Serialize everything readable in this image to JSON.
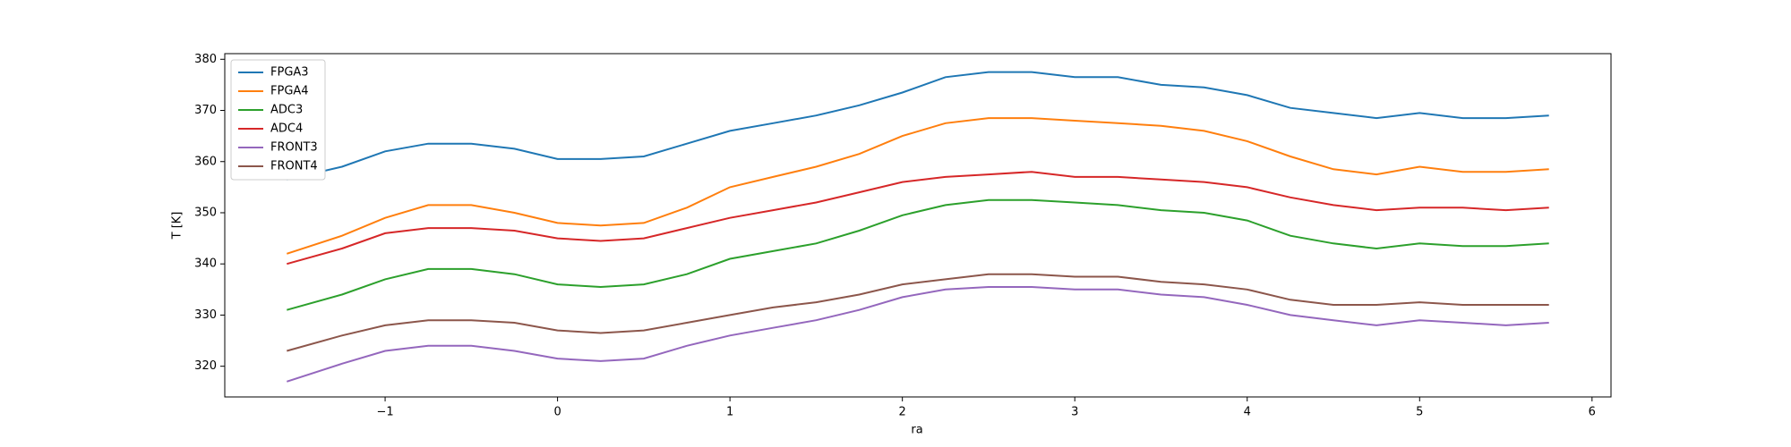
{
  "chart_data": {
    "type": "line",
    "xlabel": "ra",
    "ylabel": "T [K]",
    "x": [
      -1.57,
      -1.25,
      -1.0,
      -0.75,
      -0.5,
      -0.25,
      0,
      0.25,
      0.5,
      0.75,
      1.0,
      1.25,
      1.5,
      1.75,
      2.0,
      2.25,
      2.5,
      2.75,
      3.0,
      3.25,
      3.5,
      3.75,
      4.0,
      4.25,
      4.5,
      4.75,
      5.0,
      5.25,
      5.5,
      5.75
    ],
    "series": [
      {
        "name": "FPGA3",
        "color": "#1f77b4",
        "values": [
          356.5,
          359,
          362,
          363.5,
          363.5,
          362.5,
          360.5,
          360.5,
          361,
          363.5,
          366,
          367.5,
          369,
          371,
          373.5,
          376.5,
          377.5,
          377.5,
          376.5,
          376.5,
          375,
          374.5,
          373,
          370.5,
          369.5,
          368.5,
          369.5,
          368.5,
          368.5,
          369
        ]
      },
      {
        "name": "FPGA4",
        "color": "#ff7f0e",
        "values": [
          342,
          345.5,
          349,
          351.5,
          351.5,
          350,
          348,
          347.5,
          348,
          351,
          355,
          357,
          359,
          361.5,
          365,
          367.5,
          368.5,
          368.5,
          368,
          367.5,
          367,
          366,
          364,
          361,
          358.5,
          357.5,
          359,
          358,
          358,
          358.5
        ]
      },
      {
        "name": "ADC3",
        "color": "#2ca02c",
        "values": [
          331,
          334,
          337,
          339,
          339,
          338,
          336,
          335.5,
          336,
          338,
          341,
          342.5,
          344,
          346.5,
          349.5,
          351.5,
          352.5,
          352.5,
          352,
          351.5,
          350.5,
          350,
          348.5,
          345.5,
          344,
          343,
          344,
          343.5,
          343.5,
          344
        ]
      },
      {
        "name": "ADC4",
        "color": "#d62728",
        "values": [
          340,
          343,
          346,
          347,
          347,
          346.5,
          345,
          344.5,
          345,
          347,
          349,
          350.5,
          352,
          354,
          356,
          357,
          357.5,
          358,
          357,
          357,
          356.5,
          356,
          355,
          353,
          351.5,
          350.5,
          351,
          351,
          350.5,
          351
        ]
      },
      {
        "name": "FRONT3",
        "color": "#9467bd",
        "values": [
          317,
          320.5,
          323,
          324,
          324,
          323,
          321.5,
          321,
          321.5,
          324,
          326,
          327.5,
          329,
          331,
          333.5,
          335,
          335.5,
          335.5,
          335,
          335,
          334,
          333.5,
          332,
          330,
          329,
          328,
          329,
          328.5,
          328,
          328.5
        ]
      },
      {
        "name": "FRONT4",
        "color": "#8c564b",
        "values": [
          323,
          326,
          328,
          329,
          329,
          328.5,
          327,
          326.5,
          327,
          328.5,
          330,
          331.5,
          332.5,
          334,
          336,
          337,
          338,
          338,
          337.5,
          337.5,
          336.5,
          336,
          335,
          333,
          332,
          332,
          332.5,
          332,
          332,
          332
        ]
      }
    ],
    "xlim": [
      -1.93,
      6.11
    ],
    "ylim": [
      314.0,
      381.1
    ],
    "xticks": [
      {
        "value": -1,
        "label": "−1"
      },
      0,
      1,
      2,
      3,
      4,
      5,
      6
    ],
    "yticks": [
      320,
      330,
      340,
      350,
      360,
      370,
      380
    ],
    "legend": "upper left"
  }
}
